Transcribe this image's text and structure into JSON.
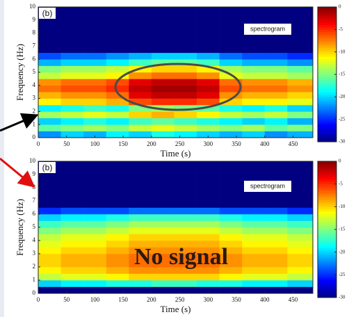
{
  "chart_data": [
    {
      "type": "heatmap",
      "panel_label": "(b)",
      "tag": "spectrogram",
      "x_label": "Time (s)",
      "y_label": "Frequency (Hz)",
      "colormap": "jet",
      "clim": [
        -30,
        0
      ],
      "cticks": [
        0,
        -5,
        -10,
        -15,
        -20,
        -25,
        -30
      ],
      "xlim": [
        0,
        485
      ],
      "ylim": [
        0,
        10
      ],
      "xticks": [
        0,
        50,
        100,
        150,
        200,
        250,
        300,
        350,
        400,
        450
      ],
      "yticks": [
        0,
        1,
        2,
        3,
        4,
        5,
        6,
        7,
        8,
        9,
        10
      ],
      "x_bins": [
        0,
        40,
        80,
        120,
        160,
        200,
        240,
        280,
        320,
        360,
        400,
        440,
        485
      ],
      "y_bins": [
        0,
        0.5,
        1,
        1.5,
        2,
        2.5,
        3,
        3.5,
        4,
        4.5,
        5,
        5.5,
        6,
        6.5,
        10
      ],
      "values": [
        [
          -22,
          -20,
          -21,
          -19,
          -20,
          -18,
          -19,
          -20,
          -21,
          -20,
          -22,
          -21
        ],
        [
          -16,
          -15,
          -14,
          -15,
          -13,
          -12,
          -13,
          -14,
          -15,
          -14,
          -16,
          -15
        ],
        [
          -20,
          -19,
          -18,
          -19,
          -17,
          -16,
          -17,
          -18,
          -19,
          -20,
          -19,
          -21
        ],
        [
          -14,
          -13,
          -12,
          -13,
          -10,
          -9,
          -10,
          -11,
          -13,
          -14,
          -13,
          -15
        ],
        [
          -19,
          -18,
          -17,
          -18,
          -15,
          -14,
          -15,
          -16,
          -18,
          -19,
          -18,
          -20
        ],
        [
          -11,
          -10,
          -10,
          -9,
          -6,
          -5,
          -5,
          -6,
          -10,
          -11,
          -11,
          -12
        ],
        [
          -9,
          -8,
          -8,
          -7,
          -3,
          -2,
          -2,
          -3,
          -8,
          -9,
          -9,
          -10
        ],
        [
          -7,
          -6,
          -6,
          -5,
          -2,
          -1,
          -1,
          -2,
          -6,
          -7,
          -7,
          -8
        ],
        [
          -8,
          -7,
          -7,
          -6,
          -3,
          -2,
          -2,
          -3,
          -7,
          -8,
          -8,
          -9
        ],
        [
          -13,
          -12,
          -12,
          -11,
          -8,
          -7,
          -7,
          -8,
          -12,
          -13,
          -13,
          -14
        ],
        [
          -15,
          -14,
          -14,
          -13,
          -11,
          -10,
          -10,
          -11,
          -14,
          -15,
          -15,
          -16
        ],
        [
          -21,
          -20,
          -20,
          -19,
          -17,
          -16,
          -16,
          -17,
          -20,
          -21,
          -21,
          -22
        ],
        [
          -24,
          -23,
          -23,
          -22,
          -21,
          -20,
          -20,
          -21,
          -23,
          -24,
          -24,
          -25
        ],
        [
          -30,
          -30,
          -30,
          -30,
          -30,
          -30,
          -30,
          -30,
          -30,
          -30,
          -30,
          -30
        ]
      ]
    },
    {
      "type": "heatmap",
      "panel_label": "(b)",
      "tag": "spectrogram",
      "x_label": "Time (s)",
      "y_label": "Frequency (Hz)",
      "annotation": "No signal",
      "colormap": "jet",
      "clim": [
        -30,
        0
      ],
      "cticks": [
        0,
        -5,
        -10,
        -15,
        -20,
        -25,
        -30
      ],
      "xlim": [
        0,
        485
      ],
      "ylim": [
        0,
        10
      ],
      "xticks": [
        0,
        50,
        100,
        150,
        200,
        250,
        300,
        350,
        400,
        450
      ],
      "yticks": [
        0,
        1,
        2,
        3,
        4,
        5,
        6,
        7,
        8,
        9,
        10
      ],
      "x_bins": [
        0,
        40,
        80,
        120,
        160,
        200,
        240,
        280,
        320,
        360,
        400,
        440,
        485
      ],
      "y_bins": [
        0,
        0.5,
        1,
        1.5,
        2,
        2.5,
        3,
        3.5,
        4,
        4.5,
        5,
        5.5,
        6,
        6.5,
        10
      ],
      "values": [
        [
          -30,
          -30,
          -30,
          -30,
          -30,
          -30,
          -30,
          -30,
          -30,
          -30,
          -30,
          -30
        ],
        [
          -20,
          -19,
          -19,
          -18,
          -18,
          -17,
          -17,
          -18,
          -18,
          -19,
          -19,
          -20
        ],
        [
          -13,
          -12,
          -12,
          -11,
          -10,
          -10,
          -10,
          -10,
          -11,
          -12,
          -12,
          -13
        ],
        [
          -11,
          -10,
          -10,
          -9,
          -8,
          -8,
          -8,
          -8,
          -9,
          -10,
          -10,
          -11
        ],
        [
          -10,
          -9,
          -9,
          -8,
          -7,
          -7,
          -7,
          -7,
          -8,
          -9,
          -9,
          -10
        ],
        [
          -10,
          -9,
          -9,
          -8,
          -7,
          -7,
          -7,
          -7,
          -8,
          -9,
          -9,
          -10
        ],
        [
          -11,
          -10,
          -10,
          -9,
          -8,
          -8,
          -8,
          -8,
          -9,
          -10,
          -10,
          -11
        ],
        [
          -12,
          -11,
          -11,
          -10,
          -9,
          -9,
          -9,
          -9,
          -10,
          -11,
          -11,
          -12
        ],
        [
          -13,
          -12,
          -12,
          -11,
          -10,
          -10,
          -10,
          -10,
          -11,
          -12,
          -12,
          -13
        ],
        [
          -15,
          -14,
          -14,
          -13,
          -12,
          -12,
          -12,
          -12,
          -13,
          -14,
          -14,
          -15
        ],
        [
          -17,
          -16,
          -16,
          -15,
          -14,
          -14,
          -14,
          -14,
          -15,
          -16,
          -16,
          -17
        ],
        [
          -20,
          -19,
          -19,
          -18,
          -17,
          -17,
          -17,
          -17,
          -18,
          -19,
          -19,
          -20
        ],
        [
          -25,
          -24,
          -24,
          -24,
          -23,
          -23,
          -23,
          -23,
          -24,
          -24,
          -24,
          -25
        ],
        [
          -30,
          -30,
          -30,
          -30,
          -30,
          -30,
          -30,
          -30,
          -30,
          -30,
          -30,
          -30
        ]
      ]
    }
  ]
}
